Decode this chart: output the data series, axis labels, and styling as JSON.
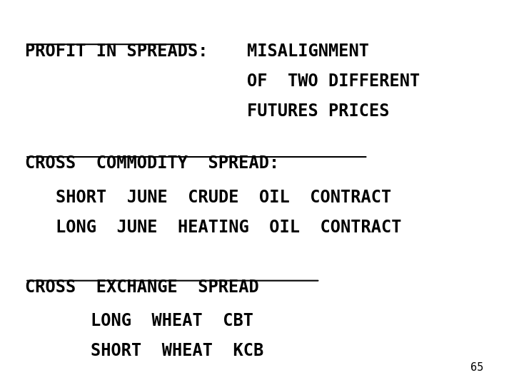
{
  "background_color": "#ffffff",
  "page_number": "65",
  "line1_left": "PROFIT IN SPREADS:",
  "line1_right_1": "MISALIGNMENT",
  "line1_right_2": "OF  TWO DIFFERENT",
  "line1_right_3": "FUTURES PRICES",
  "section2_header": "CROSS  COMMODITY  SPREAD:",
  "section2_line1": "SHORT  JUNE  CRUDE  OIL  CONTRACT",
  "section2_line2": "LONG  JUNE  HEATING  OIL  CONTRACT",
  "section3_header": "CROSS  EXCHANGE  SPREAD",
  "section3_line1": "LONG  WHEAT  CBT",
  "section3_line2": "SHORT  WHEAT  KCB",
  "font_family": "monospace",
  "font_size_large": 17,
  "font_size_small": 11,
  "text_color": "#000000",
  "underline_color": "#000000"
}
